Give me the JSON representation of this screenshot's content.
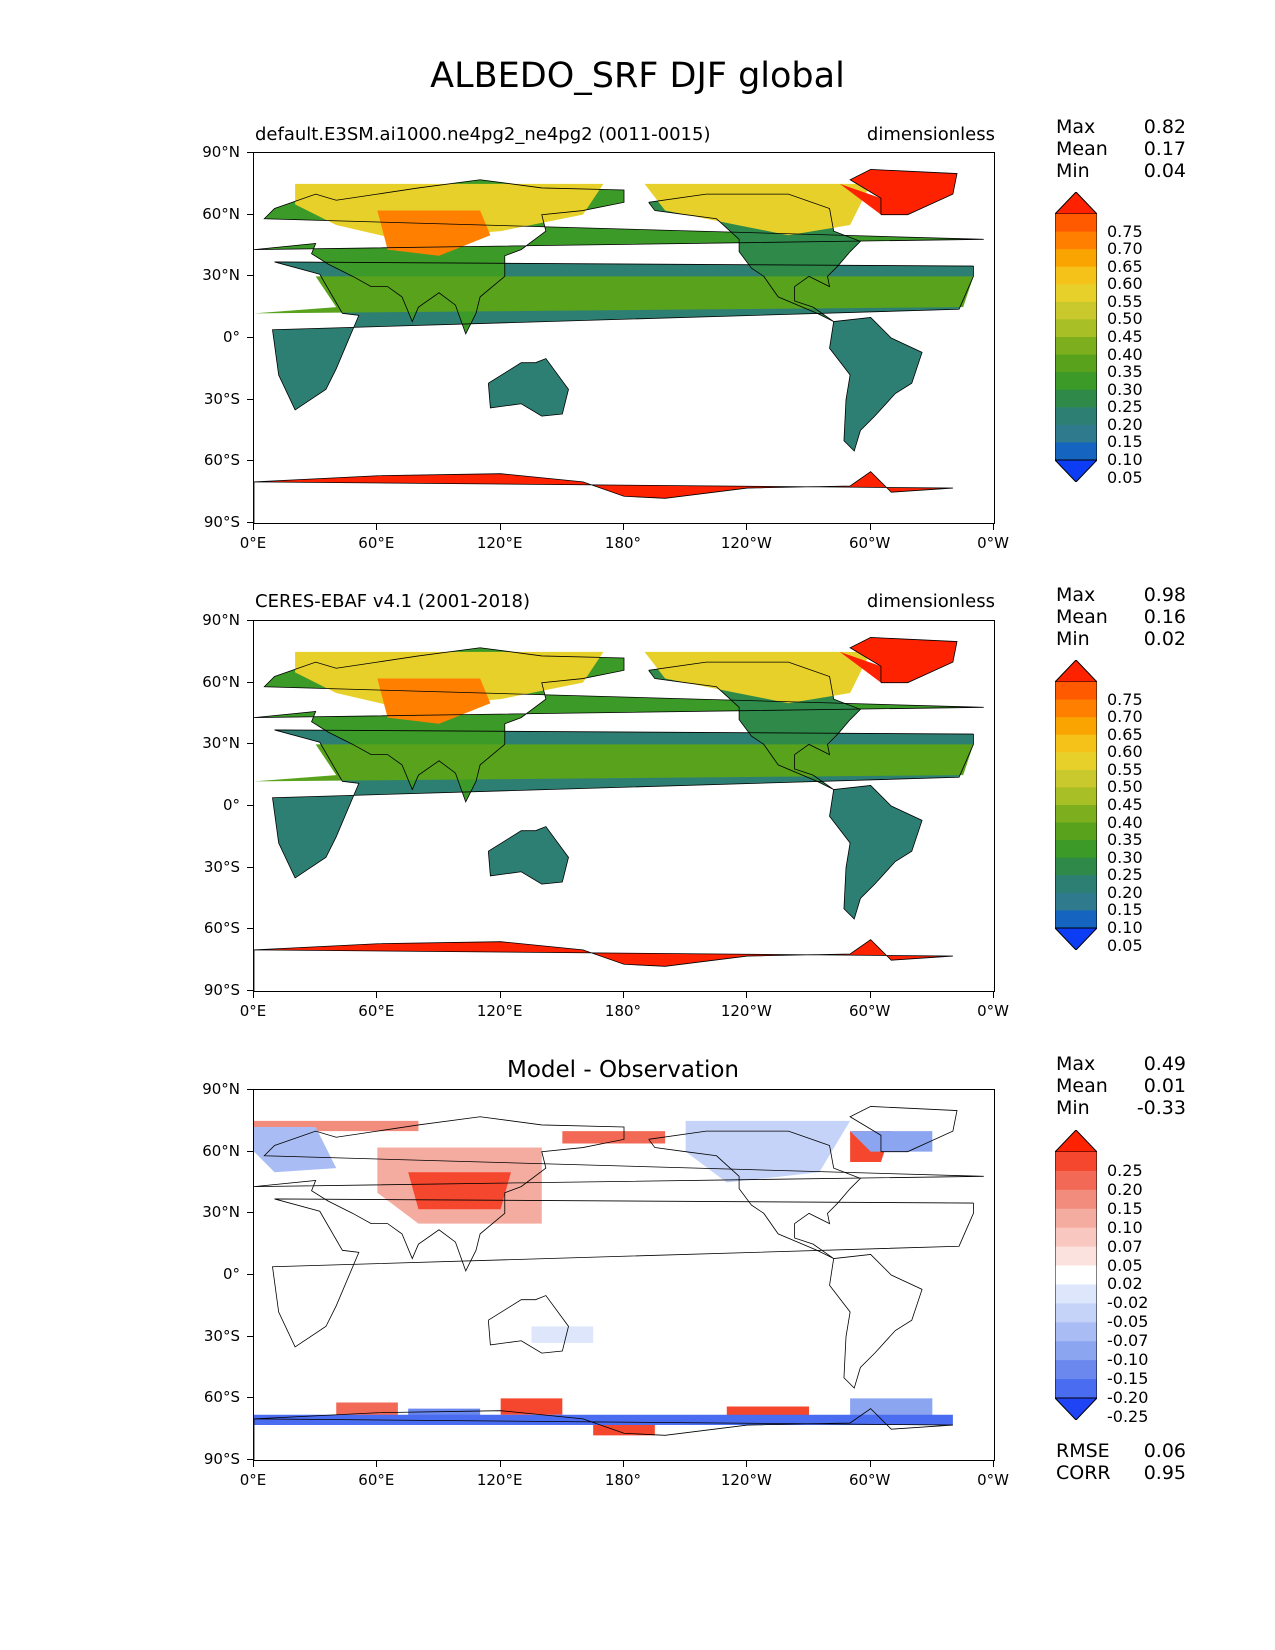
{
  "title": "ALBEDO_SRF DJF global",
  "axes": {
    "lat_ticks": [
      "90°N",
      "60°N",
      "30°N",
      "0°",
      "30°S",
      "60°S",
      "90°S"
    ],
    "lon_ticks": [
      "0°E",
      "60°E",
      "120°E",
      "180°",
      "120°W",
      "60°W",
      "0°W"
    ]
  },
  "chart_data": [
    {
      "type": "heatmap",
      "title_left": "default.E3SM.ai1000.ne4pg2_ne4pg2 (0011-0015)",
      "title_right": "dimensionless",
      "stats": {
        "max_label": "Max",
        "max": "0.82",
        "mean_label": "Mean",
        "mean": "0.17",
        "min_label": "Min",
        "min": "0.04"
      },
      "colorbar": {
        "levels": [
          "0.75",
          "0.70",
          "0.65",
          "0.60",
          "0.55",
          "0.50",
          "0.45",
          "0.40",
          "0.35",
          "0.30",
          "0.25",
          "0.20",
          "0.15",
          "0.10",
          "0.05"
        ],
        "colors": [
          "#ff2200",
          "#ff5a00",
          "#ff8000",
          "#f9a400",
          "#f5c219",
          "#e8d02a",
          "#c9c92d",
          "#a8bf25",
          "#7dae1e",
          "#58a21c",
          "#3c9a29",
          "#2f8a4a",
          "#2e7f73",
          "#2f7a8c",
          "#1565c0",
          "#0c3df4"
        ]
      }
    },
    {
      "type": "heatmap",
      "title_left": "CERES-EBAF v4.1 (2001-2018)",
      "title_right": "dimensionless",
      "stats": {
        "max_label": "Max",
        "max": "0.98",
        "mean_label": "Mean",
        "mean": "0.16",
        "min_label": "Min",
        "min": "0.02"
      },
      "colorbar": {
        "levels": [
          "0.75",
          "0.70",
          "0.65",
          "0.60",
          "0.55",
          "0.50",
          "0.45",
          "0.40",
          "0.35",
          "0.30",
          "0.25",
          "0.20",
          "0.15",
          "0.10",
          "0.05"
        ],
        "colors": [
          "#ff2200",
          "#ff5a00",
          "#ff8000",
          "#f9a400",
          "#f5c219",
          "#e8d02a",
          "#c9c92d",
          "#a8bf25",
          "#7dae1e",
          "#58a21c",
          "#3c9a29",
          "#2f8a4a",
          "#2e7f73",
          "#2f7a8c",
          "#1565c0",
          "#0c3df4"
        ]
      }
    },
    {
      "type": "heatmap",
      "title_center": "Model - Observation",
      "stats": {
        "max_label": "Max",
        "max": "0.49",
        "mean_label": "Mean",
        "mean": "0.01",
        "min_label": "Min",
        "min": "-0.33"
      },
      "colorbar": {
        "levels": [
          "0.25",
          "0.20",
          "0.15",
          "0.10",
          "0.07",
          "0.05",
          "0.02",
          "-0.02",
          "-0.05",
          "-0.07",
          "-0.10",
          "-0.15",
          "-0.20",
          "-0.25"
        ],
        "colors": [
          "#ff2200",
          "#f5472e",
          "#f26a55",
          "#f28c7c",
          "#f5aca0",
          "#f8c8c0",
          "#fbe2de",
          "#ffffff",
          "#dde6fb",
          "#c5d3f8",
          "#a9bdf4",
          "#8ba5f1",
          "#6b88ef",
          "#4a6cf0",
          "#1f44f5"
        ]
      },
      "rmse_label": "RMSE",
      "rmse": "0.06",
      "corr_label": "CORR",
      "corr": "0.95"
    }
  ]
}
